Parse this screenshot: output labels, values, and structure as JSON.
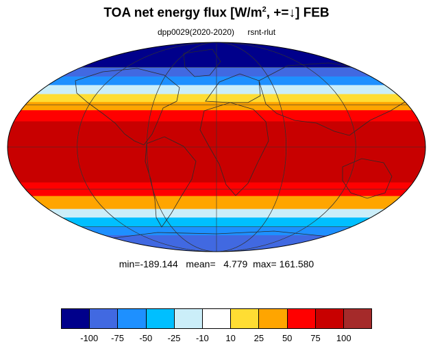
{
  "title": {
    "main": "TOA net energy flux  [W/m",
    "sup": "2",
    "rest": ", +=↓] FEB"
  },
  "subtitle": {
    "left": "dpp0029(2020-2020)",
    "right": "rsnt-rlut"
  },
  "stats": {
    "text": "min=-189.144   mean=   4.779  max= 161.580"
  },
  "colorbar": {
    "colors": [
      "#00008b",
      "#4169e1",
      "#1e90ff",
      "#00bfff",
      "#cbeef9",
      "#ffffff",
      "#ffdd33",
      "#ffa500",
      "#ff0000",
      "#c80000",
      "#a52a2a"
    ],
    "labels": [
      "-100",
      "-75",
      "-50",
      "-25",
      "-10",
      "10",
      "25",
      "50",
      "75",
      "100"
    ]
  },
  "map": {
    "projection": "mollweide",
    "zonal_bands": [
      {
        "lat": 90,
        "color": "#00008b"
      },
      {
        "lat": 60,
        "color": "#00008b"
      },
      {
        "lat": 52,
        "color": "#4169e1"
      },
      {
        "lat": 45,
        "color": "#1e90ff"
      },
      {
        "lat": 38,
        "color": "#cbeef9"
      },
      {
        "lat": 32,
        "color": "#ffdd33"
      },
      {
        "lat": 26,
        "color": "#ffa500"
      },
      {
        "lat": 18,
        "color": "#ff0000"
      },
      {
        "lat": 8,
        "color": "#c80000"
      },
      {
        "lat": -25,
        "color": "#c80000"
      },
      {
        "lat": -35,
        "color": "#ff0000"
      },
      {
        "lat": -45,
        "color": "#ffa500"
      },
      {
        "lat": -52,
        "color": "#cbeef9"
      },
      {
        "lat": -60,
        "color": "#00bfff"
      },
      {
        "lat": -68,
        "color": "#1e90ff"
      },
      {
        "lat": -90,
        "color": "#4169e1"
      }
    ]
  }
}
